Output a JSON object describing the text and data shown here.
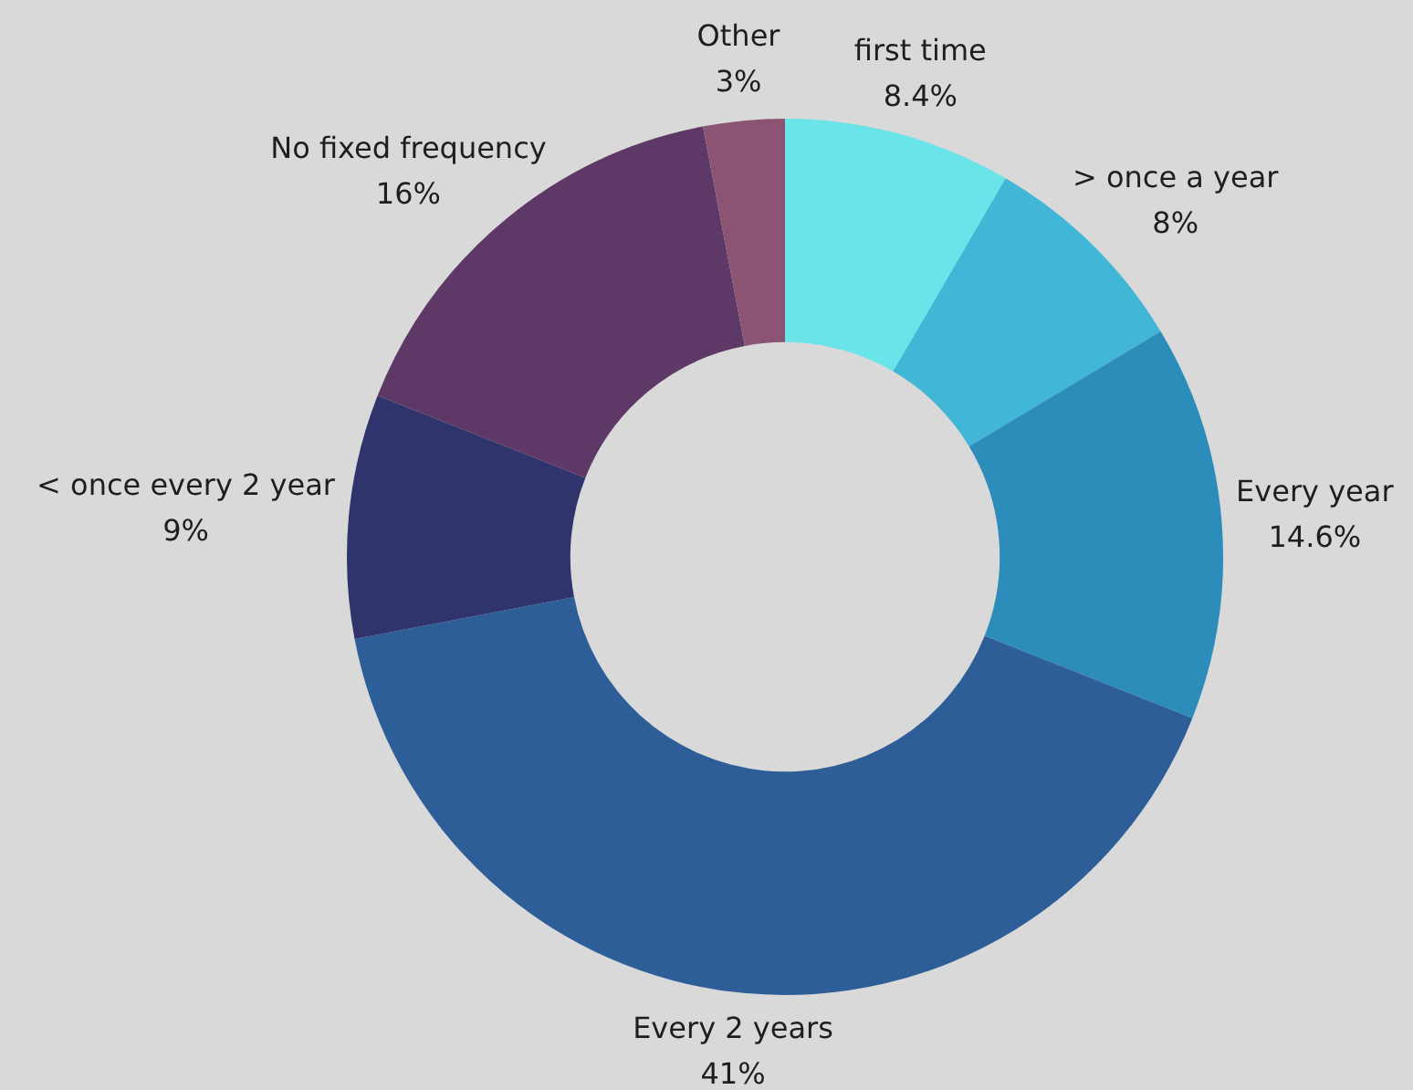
{
  "chart_data": {
    "type": "donut",
    "categories": [
      "first time",
      "> once a year",
      "Every year",
      "Every 2 years",
      "< once every 2 year",
      "No fixed frequency",
      "Other"
    ],
    "values": [
      8.4,
      8,
      14.6,
      41,
      9,
      16,
      3
    ],
    "colors": [
      "#6ae4e8",
      "#42b6d6",
      "#2c8cba",
      "#2e5e98",
      "#2f346c",
      "#5e3866",
      "#8b5472"
    ],
    "value_labels": [
      "8.4%",
      "8%",
      "14.6%",
      "41%",
      "9%",
      "16%",
      "3%"
    ]
  }
}
